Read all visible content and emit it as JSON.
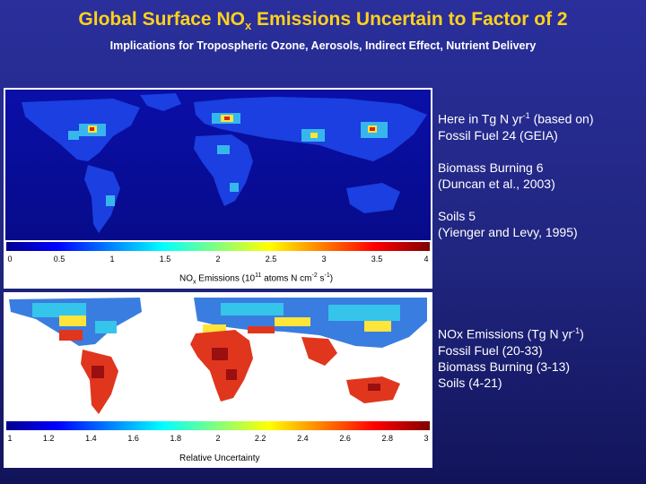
{
  "title": {
    "pre": "Global Surface NO",
    "sub": "x",
    "post": " Emissions Uncertain to Factor of 2"
  },
  "subtitle": "Implications for Tropospheric Ozone, Aerosols, Indirect Effect, Nutrient Delivery",
  "map1": {
    "colorbar_ticks": [
      "0",
      "0.5",
      "1",
      "1.5",
      "2",
      "2.5",
      "3",
      "3.5",
      "4"
    ],
    "label": {
      "pre": "NO",
      "sub": "x",
      "mid": " Emissions (10",
      "sup1": "11",
      "post1": " atoms N cm",
      "sup2": "-2",
      "post2": " s",
      "sup3": "-1",
      "end": ")"
    }
  },
  "map2": {
    "colorbar_ticks": [
      "1",
      "1.2",
      "1.4",
      "1.6",
      "1.8",
      "2",
      "2.2",
      "2.4",
      "2.6",
      "2.8",
      "3"
    ],
    "label": "Relative Uncertainty"
  },
  "notes1": {
    "header_pre": "Here in Tg N yr",
    "header_sup": "-1",
    "header_post": " (based on)",
    "fossil": "Fossil Fuel 24 (GEIA)",
    "biomass1": "Biomass Burning 6",
    "biomass2": "(Duncan et al., 2003)",
    "soils1": "Soils 5",
    "soils2": "(Yienger and Levy, 1995)"
  },
  "notes2": {
    "header_pre": "NOx Emissions (Tg N yr",
    "header_sup": "-1",
    "header_post": ")",
    "fossil": "Fossil Fuel (20-33)",
    "biomass": "Biomass Burning (3-13)",
    "soils": "Soils (4-21)"
  },
  "colors": {
    "title": "#ffd21a",
    "background": "#20257e"
  }
}
